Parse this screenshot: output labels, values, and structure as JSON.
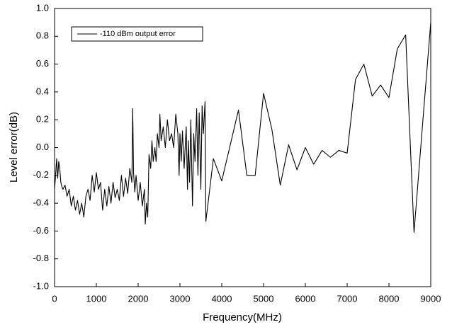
{
  "chart_data": {
    "type": "line",
    "x_label": "Frequency(MHz)",
    "y_label": "Level error(dB)",
    "legend": "upper left",
    "grid": false,
    "xlim": [
      0,
      9000
    ],
    "xticks": [
      0,
      1000,
      2000,
      3000,
      4000,
      5000,
      6000,
      7000,
      8000,
      9000
    ],
    "ylim": [
      -1,
      1
    ],
    "yticks": [
      {
        "value": -1,
        "label": "-1.0"
      },
      -0.8,
      -0.6,
      -0.4,
      -0.2,
      {
        "value": 0,
        "label": "0.0"
      },
      0.2,
      0.4,
      0.6,
      0.8,
      {
        "value": 1,
        "label": "1.0"
      }
    ],
    "x": [
      0,
      25,
      50,
      75,
      100,
      125,
      150,
      175,
      200,
      250,
      300,
      350,
      400,
      450,
      500,
      550,
      600,
      650,
      700,
      750,
      800,
      850,
      900,
      950,
      1000,
      1050,
      1100,
      1150,
      1200,
      1250,
      1300,
      1350,
      1400,
      1450,
      1500,
      1550,
      1600,
      1650,
      1700,
      1750,
      1800,
      1850,
      1870,
      1890,
      1920,
      1950,
      2000,
      2050,
      2100,
      2150,
      2170,
      2200,
      2230,
      2260,
      2300,
      2330,
      2360,
      2400,
      2430,
      2460,
      2500,
      2520,
      2550,
      2600,
      2650,
      2700,
      2750,
      2800,
      2850,
      2900,
      2950,
      2980,
      3000,
      3030,
      3060,
      3100,
      3150,
      3180,
      3200,
      3230,
      3260,
      3300,
      3330,
      3360,
      3400,
      3430,
      3460,
      3500,
      3530,
      3560,
      3600,
      3620,
      3800,
      4000,
      4400,
      4600,
      4800,
      5000,
      5200,
      5400,
      5600,
      5800,
      6000,
      6200,
      6400,
      6600,
      6800,
      7000,
      7200,
      7400,
      7600,
      7800,
      8000,
      8200,
      8400,
      8600,
      8800,
      9000
    ],
    "series": [
      {
        "name": "-110 dBm output error",
        "color": "#000000",
        "values": [
          -0.3,
          -0.2,
          -0.08,
          -0.22,
          -0.1,
          -0.15,
          -0.25,
          -0.28,
          -0.3,
          -0.27,
          -0.35,
          -0.3,
          -0.42,
          -0.35,
          -0.45,
          -0.38,
          -0.48,
          -0.4,
          -0.5,
          -0.35,
          -0.3,
          -0.38,
          -0.2,
          -0.32,
          -0.18,
          -0.3,
          -0.25,
          -0.45,
          -0.3,
          -0.42,
          -0.28,
          -0.4,
          -0.25,
          -0.36,
          -0.3,
          -0.38,
          -0.2,
          -0.35,
          -0.22,
          -0.33,
          -0.15,
          -0.25,
          0.28,
          -0.18,
          -0.32,
          -0.2,
          -0.38,
          -0.25,
          -0.42,
          -0.3,
          -0.55,
          -0.4,
          -0.5,
          -0.05,
          -0.15,
          0.05,
          -0.1,
          0.0,
          -0.1,
          0.1,
          0.0,
          0.24,
          0.05,
          0.15,
          0.0,
          0.2,
          0.05,
          0.1,
          0.0,
          0.24,
          0.1,
          -0.2,
          0.1,
          -0.1,
          0.12,
          -0.15,
          0.15,
          -0.3,
          0.05,
          -0.25,
          0.2,
          -0.42,
          0.1,
          -0.1,
          0.28,
          -0.2,
          0.25,
          -0.3,
          0.3,
          0.1,
          0.33,
          -0.53,
          -0.08,
          -0.24,
          0.27,
          -0.2,
          -0.2,
          0.39,
          0.13,
          -0.27,
          0.02,
          -0.16,
          0.0,
          -0.12,
          -0.02,
          -0.07,
          -0.02,
          -0.04,
          0.49,
          0.6,
          0.37,
          0.45,
          0.36,
          0.71,
          0.81,
          -0.61,
          0.15,
          0.9
        ]
      }
    ]
  }
}
